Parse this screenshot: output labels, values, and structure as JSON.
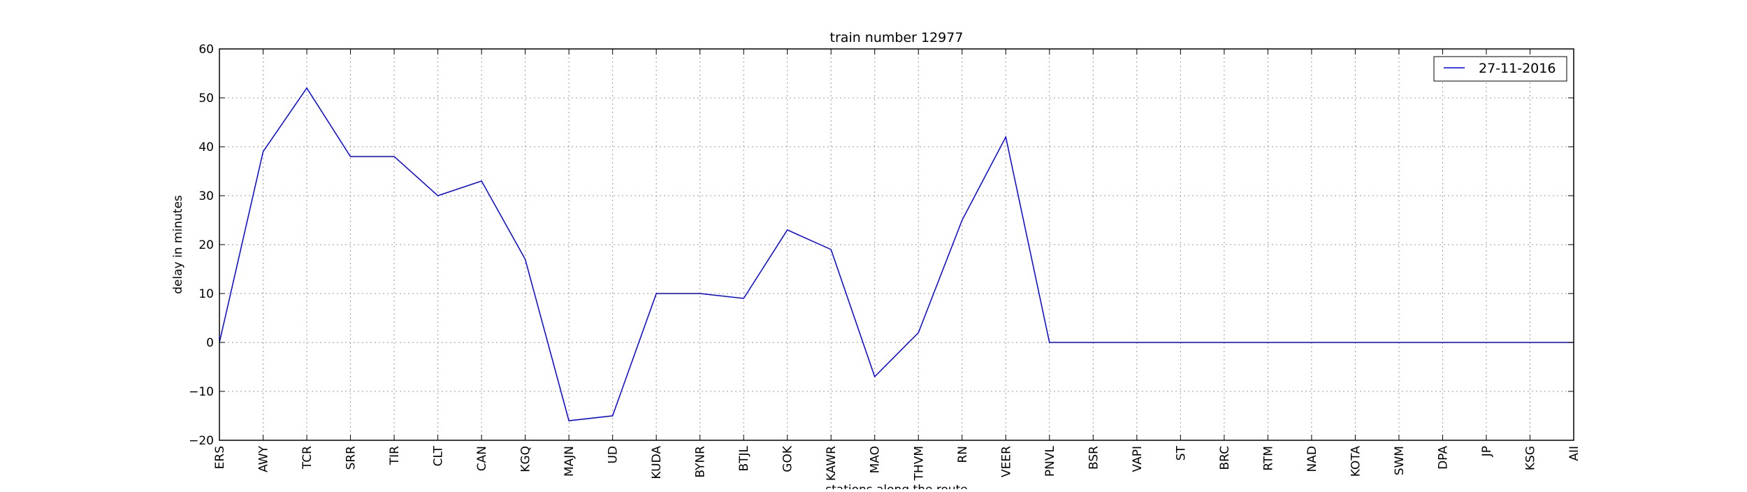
{
  "chart_data": {
    "type": "line",
    "title": "train number 12977",
    "xlabel": "stations along the route",
    "ylabel": "delay in minutes",
    "categories": [
      "ERS",
      "AWY",
      "TCR",
      "SRR",
      "TIR",
      "CLT",
      "CAN",
      "KGQ",
      "MAJN",
      "UD",
      "KUDA",
      "BYNR",
      "BTJL",
      "GOK",
      "KAWR",
      "MAO",
      "THVM",
      "RN",
      "VEER",
      "PNVL",
      "BSR",
      "VAPI",
      "ST",
      "BRC",
      "RTM",
      "NAD",
      "KOTA",
      "SWM",
      "DPA",
      "JP",
      "KSG",
      "AII"
    ],
    "series": [
      {
        "name": "27-11-2016",
        "color": "#0000ff",
        "values": [
          0,
          39,
          52,
          38,
          38,
          30,
          33,
          17,
          -16,
          -15,
          10,
          10,
          9,
          23,
          19,
          -7,
          2,
          25,
          42,
          0,
          0,
          0,
          0,
          0,
          0,
          0,
          0,
          0,
          0,
          0,
          0,
          0
        ]
      }
    ],
    "ylim": [
      -20,
      60
    ],
    "yticks": [
      "−20",
      "−10",
      "0",
      "10",
      "20",
      "30",
      "40",
      "50",
      "60"
    ],
    "yticks_values": [
      -20,
      -10,
      0,
      10,
      20,
      30,
      40,
      50,
      60
    ],
    "grid": true,
    "legend_position": "top-right"
  }
}
